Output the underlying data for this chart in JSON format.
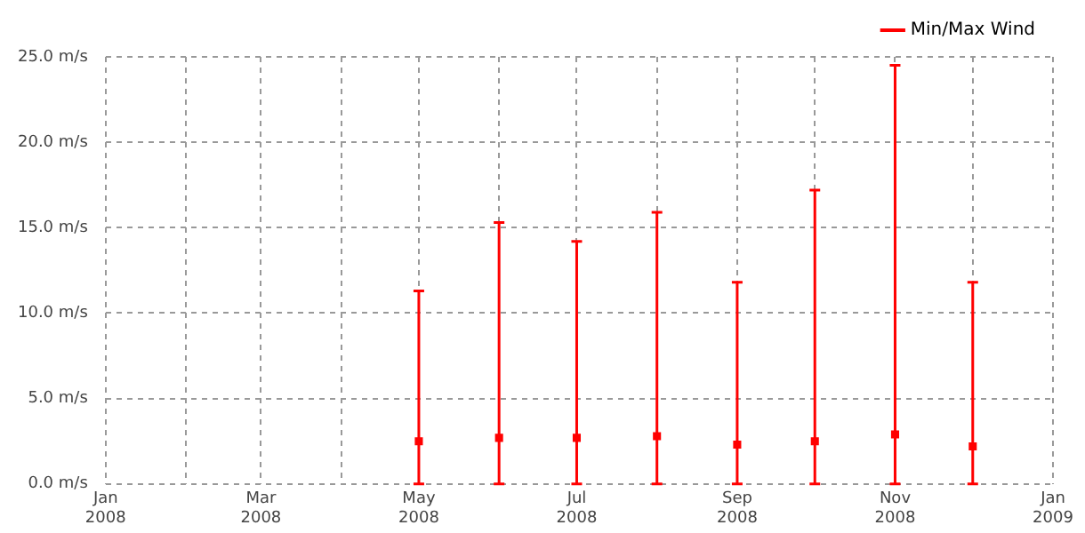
{
  "chart_data": {
    "type": "scatter",
    "x": [
      "2008-05-01",
      "2008-06-01",
      "2008-07-01",
      "2008-08-01",
      "2008-09-01",
      "2008-10-01",
      "2008-11-01",
      "2008-12-01"
    ],
    "series": [
      {
        "name": "Min/Max Wind",
        "color": "#ff0000",
        "values": [
          2.5,
          2.7,
          2.7,
          2.8,
          2.3,
          2.5,
          2.9,
          2.2
        ],
        "errors": [
          [
            0,
            11.3
          ],
          [
            0,
            15.3
          ],
          [
            0,
            14.2
          ],
          [
            0,
            15.9
          ],
          [
            0,
            11.8
          ],
          [
            0,
            17.2
          ],
          [
            0,
            24.5
          ],
          [
            0,
            11.8
          ]
        ]
      }
    ],
    "xlim": [
      "2008-01-01",
      "2009-01-01"
    ],
    "xticks": [
      {
        "value": "2008-01-01",
        "label": "Jan 2008"
      },
      {
        "value": "2008-02-01",
        "label": null
      },
      {
        "value": "2008-03-01",
        "label": "Mar 2008"
      },
      {
        "value": "2008-04-01",
        "label": null
      },
      {
        "value": "2008-05-01",
        "label": "May 2008"
      },
      {
        "value": "2008-06-01",
        "label": null
      },
      {
        "value": "2008-07-01",
        "label": "Jul 2008"
      },
      {
        "value": "2008-08-01",
        "label": null
      },
      {
        "value": "2008-09-01",
        "label": "Sep 2008"
      },
      {
        "value": "2008-10-01",
        "label": null
      },
      {
        "value": "2008-11-01",
        "label": "Nov 2008"
      },
      {
        "value": "2008-12-01",
        "label": null
      },
      {
        "value": "2009-01-01",
        "label": "Jan 2009"
      }
    ],
    "ylim": [
      0,
      25
    ],
    "yticks": [
      {
        "value": 0,
        "label": "0.0 m/s"
      },
      {
        "value": 5,
        "label": "5.0 m/s"
      },
      {
        "value": 10,
        "label": "10.0 m/s"
      },
      {
        "value": 15,
        "label": "15.0 m/s"
      },
      {
        "value": 20,
        "label": "20.0 m/s"
      },
      {
        "value": 25,
        "label": "25.0 m/s"
      }
    ],
    "grid": true,
    "legend": "top right"
  }
}
